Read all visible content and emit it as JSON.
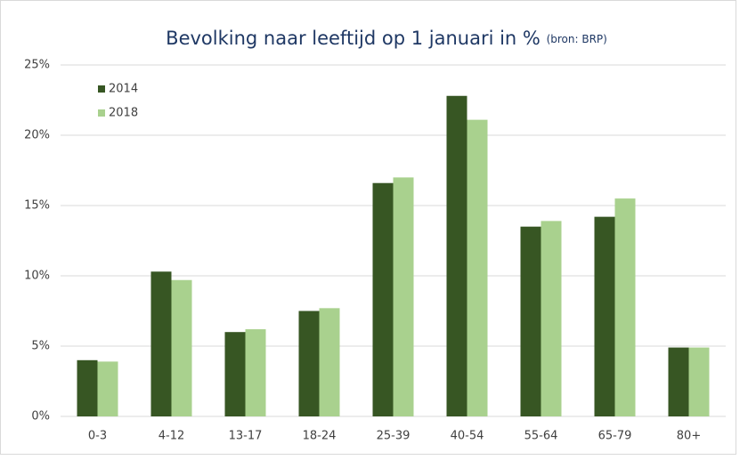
{
  "chart_data": {
    "type": "bar",
    "title": "Bevolking naar leeftijd op 1 januari in %",
    "subtitle": "(bron: BRP)",
    "categories": [
      "0-3",
      "4-12",
      "13-17",
      "18-24",
      "25-39",
      "40-54",
      "55-64",
      "65-79",
      "80+"
    ],
    "series": [
      {
        "name": "2014",
        "color": "#375623",
        "values": [
          4.0,
          10.3,
          6.0,
          7.5,
          16.6,
          22.8,
          13.5,
          14.2,
          4.9
        ]
      },
      {
        "name": "2018",
        "color": "#a9d18e",
        "values": [
          3.9,
          9.7,
          6.2,
          7.7,
          17.0,
          21.1,
          13.9,
          15.5,
          4.9
        ]
      }
    ],
    "ylim": [
      0,
      25
    ],
    "yticks": [
      {
        "value": 0,
        "label": "0%"
      },
      {
        "value": 5,
        "label": "5%"
      },
      {
        "value": 10,
        "label": "10%"
      },
      {
        "value": 15,
        "label": "15%"
      },
      {
        "value": 20,
        "label": "20%"
      },
      {
        "value": 25,
        "label": "25%"
      }
    ],
    "grid": true,
    "legend": "top-left"
  }
}
